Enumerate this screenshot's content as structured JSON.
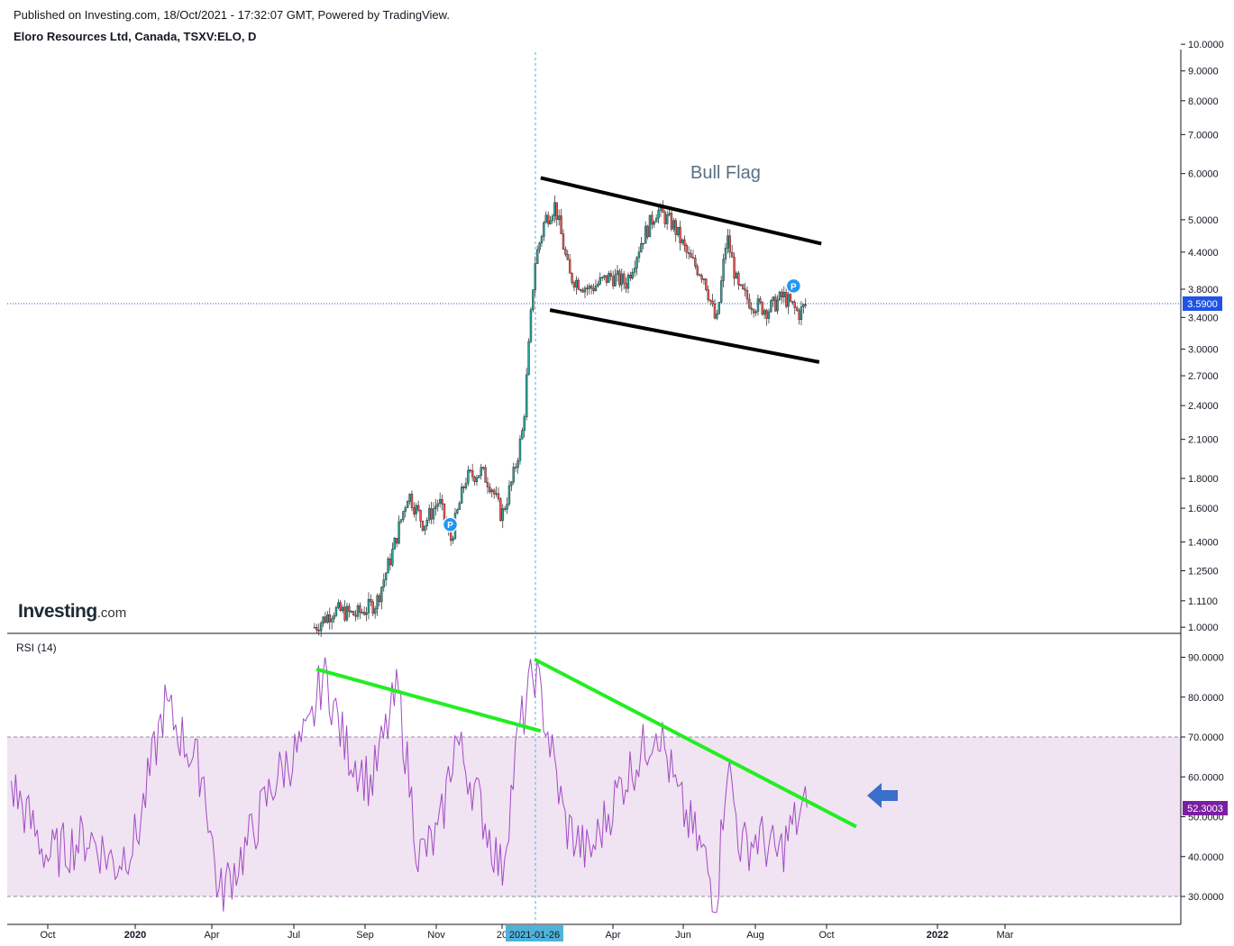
{
  "header": {
    "published": "Published on Investing.com, 18/Oct/2021 - 17:32:07 GMT, Powered by TradingView.",
    "symbol_title": "Eloro Resources Ltd, Canada, TSXV:ELO, D"
  },
  "logo": {
    "main": "Investing",
    "suffix": ".com"
  },
  "annotations": {
    "pattern_label": "Bull Flag",
    "marker_label": "P"
  },
  "crosshair": {
    "date_label": "2021-01-26"
  },
  "price_badge": {
    "value": "3.5900",
    "color": "#1e53e5"
  },
  "rsi_badge": {
    "value": "52.3003",
    "color": "#7b1fa2"
  },
  "colors": {
    "up": "#26a69a",
    "down": "#ef5350",
    "rsi_line": "#a24bc4",
    "rsi_band": "#f0e3f2",
    "trendline_green": "#22ee22",
    "flag_line": "#000000",
    "crosshair": "#4fb3d9",
    "arrow": "#3a6fc9"
  },
  "chart_data": [
    {
      "type": "line",
      "title": "Eloro Resources Ltd, Canada, TSXV:ELO, D",
      "scale": "log",
      "price_axis_ticks": [
        "10.0000",
        "9.0000",
        "8.0000",
        "7.0000",
        "6.0000",
        "5.0000",
        "4.4000",
        "3.8000",
        "3.4000",
        "3.0000",
        "2.7000",
        "2.4000",
        "2.1000",
        "1.8000",
        "1.6000",
        "1.4000",
        "1.2500",
        "1.1100",
        "1.0000"
      ],
      "time_axis_ticks": [
        "Oct",
        "2020",
        "Apr",
        "Jul",
        "Sep",
        "Nov",
        "20",
        "Apr",
        "Jun",
        "Aug",
        "Oct",
        "2022",
        "Mar"
      ],
      "last_price": 3.59,
      "approx_close_series": {
        "dates": [
          "2020-06-26",
          "2020-07-15",
          "2020-08-05",
          "2020-08-25",
          "2020-09-10",
          "2020-09-25",
          "2020-10-10",
          "2020-10-25",
          "2020-11-05",
          "2020-11-20",
          "2020-12-05",
          "2020-12-15",
          "2020-12-25",
          "2021-01-05",
          "2021-01-15",
          "2021-01-26",
          "2021-02-05",
          "2021-02-15",
          "2021-03-01",
          "2021-03-20",
          "2021-04-10",
          "2021-04-25",
          "2021-05-10",
          "2021-05-25",
          "2021-06-10",
          "2021-06-25",
          "2021-07-10",
          "2021-07-22",
          "2021-08-01",
          "2021-08-12",
          "2021-08-25",
          "2021-09-10",
          "2021-09-25",
          "2021-10-10",
          "2021-10-18"
        ],
        "close": [
          1.0,
          1.07,
          1.05,
          1.1,
          1.35,
          1.7,
          1.5,
          1.65,
          1.4,
          1.8,
          1.85,
          1.75,
          1.55,
          1.8,
          2.2,
          4.2,
          5.0,
          5.3,
          4.0,
          3.8,
          4.0,
          3.9,
          4.6,
          5.2,
          4.9,
          4.3,
          4.0,
          3.3,
          4.7,
          3.8,
          3.6,
          3.5,
          3.7,
          3.45,
          3.59
        ]
      },
      "markers": [
        {
          "label": "P",
          "date": "2020-11-05",
          "price": 1.5
        },
        {
          "label": "P",
          "date": "2021-10-05",
          "price": 3.85
        }
      ],
      "flag_upper": {
        "from": [
          "2021-02-01",
          5.9
        ],
        "to": [
          "2021-11-01",
          4.55
        ]
      },
      "flag_lower": {
        "from": [
          "2021-02-10",
          3.5
        ],
        "to": [
          "2021-10-30",
          2.85
        ]
      },
      "pattern_label": "Bull Flag"
    },
    {
      "type": "line",
      "title": "RSI (14)",
      "yaxis_ticks": [
        "90.0000",
        "80.0000",
        "70.0000",
        "60.0000",
        "50.0000",
        "40.0000",
        "30.0000"
      ],
      "ylim": [
        22,
        94
      ],
      "band": [
        30,
        70
      ],
      "last_value": 52.3003,
      "approx_series": {
        "dates": [
          "2019-09-05",
          "2019-10-10",
          "2019-11-20",
          "2019-12-15",
          "2020-01-05",
          "2020-02-01",
          "2020-03-10",
          "2020-03-25",
          "2020-04-20",
          "2020-05-20",
          "2020-06-20",
          "2020-07-05",
          "2020-07-25",
          "2020-08-20",
          "2020-09-15",
          "2020-10-05",
          "2020-10-25",
          "2020-11-10",
          "2020-12-01",
          "2020-12-25",
          "2021-01-10",
          "2021-01-26",
          "2021-02-05",
          "2021-02-25",
          "2021-03-20",
          "2021-04-20",
          "2021-05-15",
          "2021-05-25",
          "2021-06-15",
          "2021-07-10",
          "2021-07-22",
          "2021-08-01",
          "2021-08-15",
          "2021-09-01",
          "2021-09-20",
          "2021-10-05",
          "2021-10-18"
        ],
        "values": [
          58,
          40,
          45,
          38,
          45,
          78,
          60,
          30,
          42,
          60,
          70,
          87,
          68,
          58,
          82,
          40,
          45,
          70,
          55,
          36,
          70,
          87,
          75,
          48,
          40,
          58,
          68,
          74,
          54,
          40,
          28,
          65,
          42,
          45,
          40,
          48,
          52.3
        ]
      },
      "trendline_1": {
        "from": [
          "2020-06-28",
          87
        ],
        "to": [
          "2021-02-01",
          71.5
        ]
      },
      "trendline_2": {
        "from": [
          "2021-01-26",
          89.5
        ],
        "to": [
          "2021-12-05",
          47.5
        ]
      }
    }
  ]
}
